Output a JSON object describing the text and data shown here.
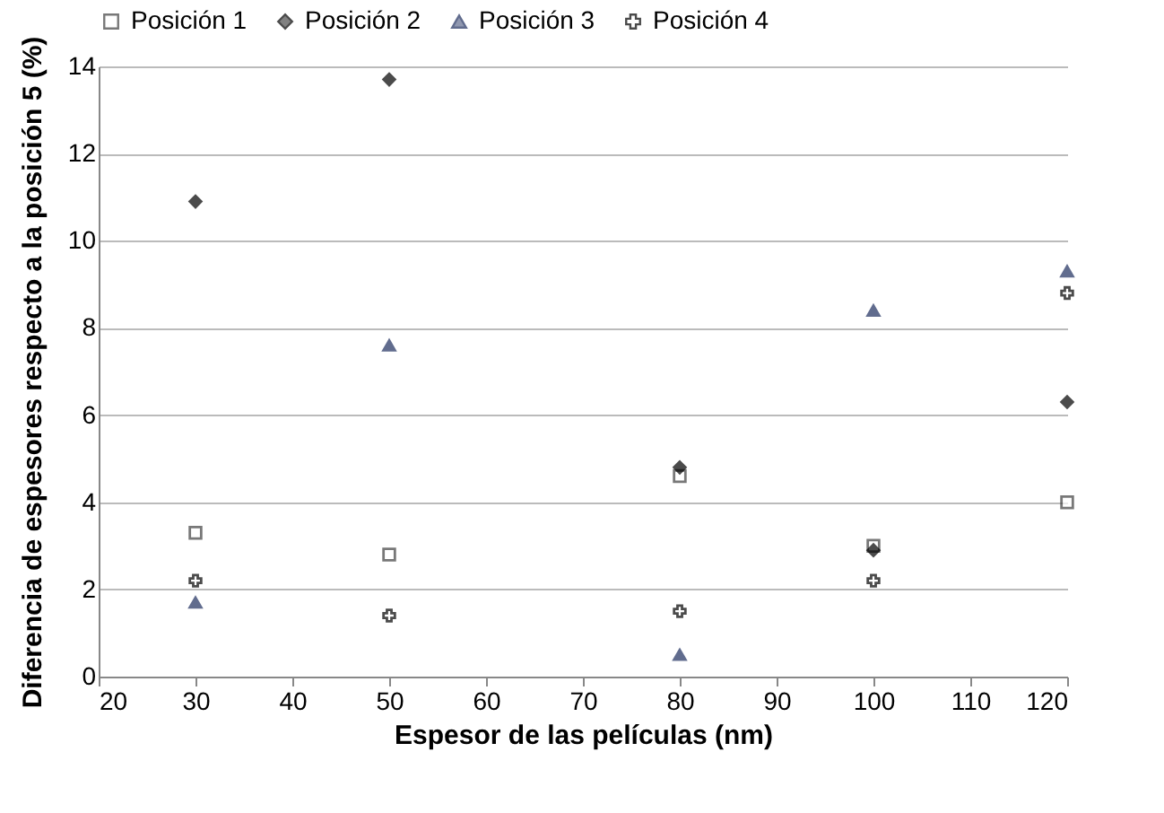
{
  "chart_data": {
    "type": "scatter",
    "xlabel": "Espesor de las películas (nm)",
    "ylabel": "Diferencia de espesores respecto a la posición 5 (%)",
    "x": [
      30,
      50,
      80,
      100,
      120
    ],
    "series": [
      {
        "name": "Posición 1",
        "color": "#404040",
        "marker": "square",
        "values": [
          3.3,
          2.8,
          4.6,
          3.0,
          4.0
        ]
      },
      {
        "name": "Posición 2",
        "color": "#000000",
        "marker": "diamond",
        "values": [
          10.9,
          13.7,
          4.8,
          2.9,
          6.3
        ]
      },
      {
        "name": "Posición 3",
        "color": "#1f2f5f",
        "marker": "triangle",
        "values": [
          1.7,
          7.6,
          0.5,
          8.4,
          9.3
        ]
      },
      {
        "name": "Posición 4",
        "color": "#000000",
        "marker": "cross",
        "values": [
          2.2,
          1.4,
          1.5,
          2.2,
          8.8
        ]
      }
    ],
    "xlim": [
      20,
      120
    ],
    "xticks": [
      20,
      30,
      40,
      50,
      60,
      70,
      80,
      90,
      100,
      110,
      120
    ],
    "ylim": [
      0,
      14
    ],
    "yticks": [
      0,
      2,
      4,
      6,
      8,
      10,
      12,
      14
    ],
    "grid": "y",
    "legend": "top"
  }
}
